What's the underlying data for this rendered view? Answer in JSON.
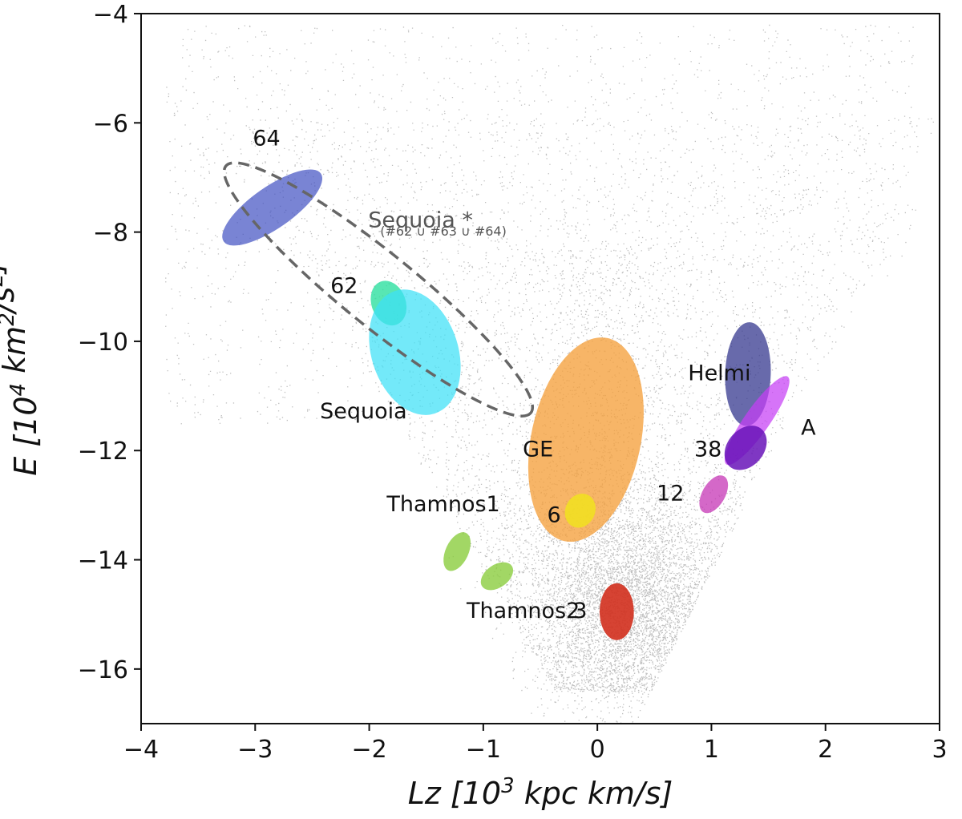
{
  "chart_data": {
    "type": "scatter",
    "title": "",
    "xlabel": "Lz [10^3 kpc km/s]",
    "ylabel": "E [10^4 km^2/s^2]",
    "xlim": [
      -4,
      3
    ],
    "ylim": [
      -17,
      -4
    ],
    "x_ticks": [
      -4,
      -3,
      -2,
      -1,
      0,
      1,
      2,
      3
    ],
    "y_ticks": [
      -16,
      -14,
      -12,
      -10,
      -8,
      -6,
      -4
    ],
    "x_tick_labels": [
      "−4",
      "−3",
      "−2",
      "−1",
      "0",
      "1",
      "2",
      "3"
    ],
    "y_tick_labels": [
      "−16",
      "−14",
      "−12",
      "−10",
      "−8",
      "−6",
      "−4"
    ],
    "grid": false,
    "background_points_color": "#8a8a8a",
    "clusters": [
      {
        "label": "64",
        "cx": -2.85,
        "cy": -7.55,
        "rx": 0.52,
        "ry": 0.38,
        "angle_deg": -35,
        "color": "#3a49c0",
        "opacity": 0.68,
        "label_x": -2.9,
        "label_y": -6.3
      },
      {
        "label": "62",
        "cx": -1.83,
        "cy": -9.3,
        "rx": 0.15,
        "ry": 0.42,
        "angle_deg": -20,
        "color": "#2ee0a0",
        "opacity": 0.8,
        "label_x": -2.22,
        "label_y": -9.0
      },
      {
        "label": "Sequoia",
        "cx": -1.6,
        "cy": -10.2,
        "rx": 0.38,
        "ry": 1.18,
        "angle_deg": -18,
        "color": "#3de1f7",
        "opacity": 0.72,
        "label_x": -2.05,
        "label_y": -11.3
      },
      {
        "label": "GE",
        "cx": -0.1,
        "cy": -11.8,
        "rx": 0.48,
        "ry": 1.9,
        "angle_deg": 12,
        "color": "#f5a03c",
        "opacity": 0.78,
        "label_x": -0.52,
        "label_y": -12.0
      },
      {
        "label": "6",
        "cx": -0.15,
        "cy": -13.1,
        "rx": 0.13,
        "ry": 0.32,
        "angle_deg": 25,
        "color": "#f1e21e",
        "opacity": 0.85,
        "label_x": -0.38,
        "label_y": -13.2
      },
      {
        "label": "3",
        "cx": 0.17,
        "cy": -14.95,
        "rx": 0.15,
        "ry": 0.52,
        "angle_deg": 0,
        "color": "#d23322",
        "opacity": 0.92,
        "label_x": -0.15,
        "label_y": -14.95
      },
      {
        "label": "Thamnos1",
        "cx": -1.23,
        "cy": -13.85,
        "rx": 0.1,
        "ry": 0.38,
        "angle_deg": 25,
        "color": "#88cc3a",
        "opacity": 0.78,
        "label_x": -1.35,
        "label_y": -13.0
      },
      {
        "label": "Thamnos2",
        "cx": -0.88,
        "cy": -14.3,
        "rx": 0.1,
        "ry": 0.33,
        "angle_deg": 55,
        "color": "#88cc3a",
        "opacity": 0.78,
        "label_x": -0.65,
        "label_y": -14.95
      },
      {
        "label": "Helmi",
        "cx": 1.32,
        "cy": -10.6,
        "rx": 0.2,
        "ry": 0.95,
        "angle_deg": 2,
        "color": "#36388f",
        "opacity": 0.75,
        "label_x": 1.07,
        "label_y": -10.6
      },
      {
        "label": "A",
        "cx": 1.4,
        "cy": -11.45,
        "rx": 0.11,
        "ry": 0.98,
        "angle_deg": 35,
        "color": "#c63ef5",
        "opacity": 0.72,
        "label_x": 1.85,
        "label_y": -11.6
      },
      {
        "label": "38",
        "cx": 1.3,
        "cy": -11.95,
        "rx": 0.16,
        "ry": 0.45,
        "angle_deg": 40,
        "color": "#6914b8",
        "opacity": 0.85,
        "label_x": 0.97,
        "label_y": -12.0
      },
      {
        "label": "12",
        "cx": 1.02,
        "cy": -12.8,
        "rx": 0.1,
        "ry": 0.38,
        "angle_deg": 30,
        "color": "#c636b5",
        "opacity": 0.75,
        "label_x": 0.64,
        "label_y": -12.8
      }
    ],
    "dashed_region": {
      "label": "Sequoia *",
      "sublabel": "(#62 ∪ #63 ∪ #64)",
      "cx": -1.92,
      "cy": -9.05,
      "rx": 1.72,
      "ry": 0.32,
      "angle_deg": 39,
      "color": "#666666",
      "label_x": -1.55,
      "label_y": -7.8,
      "sublabel_x": -1.35,
      "sublabel_y": -8.0
    }
  }
}
